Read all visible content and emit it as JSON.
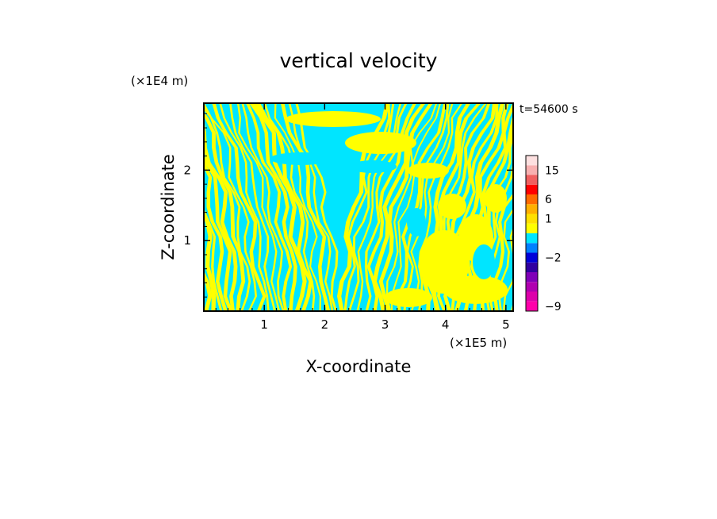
{
  "chart_data": {
    "type": "heatmap",
    "title": "vertical velocity",
    "xlabel": "X-coordinate",
    "ylabel": "Z-coordinate",
    "x_unit": "(×1E5 m)",
    "y_unit": "(×1E4 m)",
    "time_label": "t=54600 s",
    "xlim": [
      0,
      5.12
    ],
    "ylim": [
      0,
      2.95
    ],
    "xticks": [
      1,
      2,
      3,
      4,
      5
    ],
    "yticks": [
      1,
      2
    ],
    "field_description": "alternating bands of positive (yellow) and negative (cyan) vertical velocity; tilted wave bands on the left and center, larger patches on the right",
    "fill_colors": {
      "positive": "#ffff00",
      "negative": "#00e5ff"
    },
    "colorbar": {
      "levels": [
        {
          "color": "#ff00aa",
          "label": "-9"
        },
        {
          "color": "#dd00aa",
          "label": ""
        },
        {
          "color": "#b000b0",
          "label": ""
        },
        {
          "color": "#8000b8",
          "label": ""
        },
        {
          "color": "#3000a0",
          "label": ""
        },
        {
          "color": "#0000d8",
          "label": "-2"
        },
        {
          "color": "#0080ff",
          "label": ""
        },
        {
          "color": "#00e5ff",
          "label": ""
        },
        {
          "color": "#ffff00",
          "label": ""
        },
        {
          "color": "#ffe000",
          "label": "1"
        },
        {
          "color": "#ffb000",
          "label": ""
        },
        {
          "color": "#ff6a00",
          "label": "6"
        },
        {
          "color": "#ff0000",
          "label": ""
        },
        {
          "color": "#f06060",
          "label": ""
        },
        {
          "color": "#f8b0b0",
          "label": "15"
        },
        {
          "color": "#fde0e0",
          "label": ""
        }
      ]
    }
  }
}
